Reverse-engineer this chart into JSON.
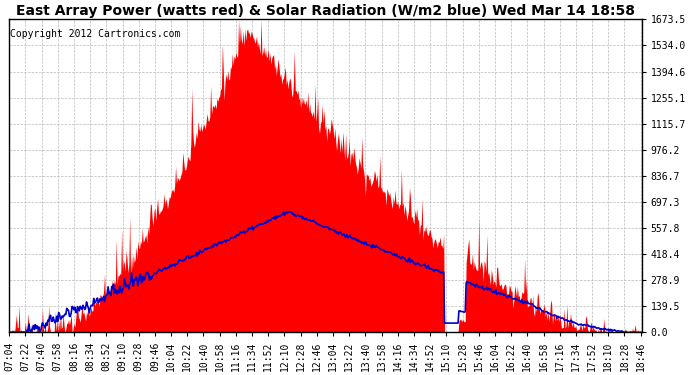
{
  "title": "East Array Power (watts red) & Solar Radiation (W/m2 blue) Wed Mar 14 18:58",
  "copyright": "Copyright 2012 Cartronics.com",
  "ylabel_right_ticks": [
    0.0,
    139.5,
    278.9,
    418.4,
    557.8,
    697.3,
    836.7,
    976.2,
    1115.7,
    1255.1,
    1394.6,
    1534.0,
    1673.5
  ],
  "ymax": 1673.5,
  "ymin": 0.0,
  "fill_color": "#FF0000",
  "line_color": "#0000CC",
  "background_color": "#FFFFFF",
  "grid_color": "#BBBBBB",
  "title_fontsize": 10,
  "copyright_fontsize": 7,
  "tick_fontsize": 7
}
